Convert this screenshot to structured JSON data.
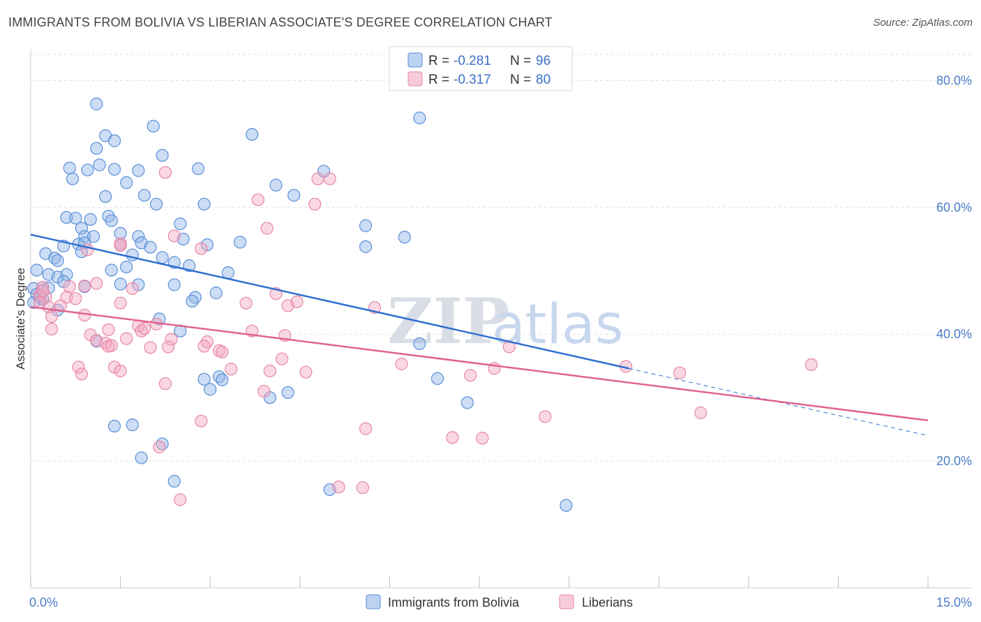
{
  "header": {
    "title": "IMMIGRANTS FROM BOLIVIA VS LIBERIAN ASSOCIATE'S DEGREE CORRELATION CHART",
    "source": "Source: ZipAtlas.com"
  },
  "watermark": {
    "zip": "ZIP",
    "atlas": "atlas"
  },
  "legend_top": {
    "rows": [
      {
        "r_label": "R = ",
        "r_value": "-0.281",
        "n_label": "N = ",
        "n_value": "96",
        "color": "#8fb4e8"
      },
      {
        "r_label": "R = ",
        "r_value": "-0.317",
        "n_label": "N = ",
        "n_value": "80",
        "color": "#f4a9c2"
      }
    ]
  },
  "legend_bottom": {
    "items": [
      {
        "label": "Immigrants from Bolivia",
        "color": "#8fb4e8"
      },
      {
        "label": "Liberians",
        "color": "#f4a9c2"
      }
    ]
  },
  "chart_data": {
    "type": "scatter",
    "title": "IMMIGRANTS FROM BOLIVIA VS LIBERIAN ASSOCIATE'S DEGREE CORRELATION CHART",
    "ylabel": "Associate's Degree",
    "xlabel": "",
    "xlim": [
      0,
      15
    ],
    "ylim": [
      0,
      85
    ],
    "x_tick_labels": [
      "0.0%",
      "15.0%"
    ],
    "y_ticks": [
      20,
      40,
      60,
      80
    ],
    "y_tick_labels": [
      "20.0%",
      "40.0%",
      "60.0%",
      "80.0%"
    ],
    "grid": true,
    "legend_position": "top-center",
    "series": [
      {
        "name": "Immigrants from Bolivia",
        "color": "#8fb4e8",
        "stroke": "#5b8fd6",
        "trend": {
          "x": [
            0,
            10
          ],
          "y": [
            55.7,
            34.6
          ],
          "dashed_to": [
            15,
            24.0
          ],
          "color": "#2f6fd0"
        },
        "points": [
          [
            1.1,
            76.3
          ],
          [
            1.25,
            71.3
          ],
          [
            2.05,
            72.8
          ],
          [
            3.7,
            71.5
          ],
          [
            6.5,
            74.1
          ],
          [
            1.1,
            69.3
          ],
          [
            1.4,
            70.5
          ],
          [
            2.2,
            68.2
          ],
          [
            0.65,
            66.2
          ],
          [
            0.95,
            65.9
          ],
          [
            1.15,
            66.7
          ],
          [
            1.4,
            66.0
          ],
          [
            1.8,
            65.8
          ],
          [
            2.8,
            66.1
          ],
          [
            4.9,
            65.7
          ],
          [
            0.7,
            64.5
          ],
          [
            1.6,
            63.9
          ],
          [
            4.1,
            63.5
          ],
          [
            1.25,
            61.7
          ],
          [
            1.9,
            61.9
          ],
          [
            2.1,
            60.5
          ],
          [
            4.4,
            61.9
          ],
          [
            2.9,
            60.5
          ],
          [
            0.6,
            58.4
          ],
          [
            0.75,
            58.3
          ],
          [
            1.0,
            58.1
          ],
          [
            1.3,
            58.6
          ],
          [
            1.35,
            57.9
          ],
          [
            2.5,
            57.4
          ],
          [
            5.6,
            57.1
          ],
          [
            0.85,
            56.7
          ],
          [
            1.5,
            55.9
          ],
          [
            0.9,
            55.4
          ],
          [
            1.05,
            55.4
          ],
          [
            1.8,
            55.4
          ],
          [
            2.55,
            55.0
          ],
          [
            6.25,
            55.3
          ],
          [
            0.55,
            53.9
          ],
          [
            0.8,
            54.2
          ],
          [
            0.9,
            54.4
          ],
          [
            1.5,
            54.0
          ],
          [
            1.85,
            54.4
          ],
          [
            2.0,
            53.7
          ],
          [
            2.95,
            54.1
          ],
          [
            3.5,
            54.5
          ],
          [
            5.6,
            53.8
          ],
          [
            0.25,
            52.7
          ],
          [
            0.4,
            52.0
          ],
          [
            0.45,
            51.6
          ],
          [
            0.85,
            53.0
          ],
          [
            1.7,
            52.5
          ],
          [
            2.2,
            52.1
          ],
          [
            2.65,
            50.8
          ],
          [
            2.4,
            51.3
          ],
          [
            0.1,
            50.1
          ],
          [
            1.35,
            50.1
          ],
          [
            1.6,
            50.6
          ],
          [
            0.3,
            49.4
          ],
          [
            0.45,
            49.0
          ],
          [
            0.6,
            49.4
          ],
          [
            3.3,
            49.7
          ],
          [
            0.55,
            48.3
          ],
          [
            1.5,
            47.9
          ],
          [
            2.4,
            47.8
          ],
          [
            0.05,
            47.2
          ],
          [
            0.2,
            47.4
          ],
          [
            0.3,
            47.3
          ],
          [
            0.1,
            46.3
          ],
          [
            0.15,
            45.8
          ],
          [
            0.2,
            45.5
          ],
          [
            3.1,
            46.5
          ],
          [
            2.75,
            45.8
          ],
          [
            2.7,
            45.2
          ],
          [
            0.05,
            45.0
          ],
          [
            0.45,
            43.8
          ],
          [
            2.15,
            42.4
          ],
          [
            2.5,
            40.5
          ],
          [
            6.5,
            38.5
          ],
          [
            2.9,
            32.9
          ],
          [
            3.15,
            33.3
          ],
          [
            3.2,
            32.8
          ],
          [
            3.0,
            31.3
          ],
          [
            4.0,
            30.0
          ],
          [
            4.3,
            30.8
          ],
          [
            6.8,
            33.0
          ],
          [
            7.3,
            29.2
          ],
          [
            1.4,
            25.5
          ],
          [
            1.7,
            25.7
          ],
          [
            2.2,
            22.7
          ],
          [
            1.85,
            20.5
          ],
          [
            2.4,
            16.8
          ],
          [
            5.0,
            15.5
          ],
          [
            8.95,
            13.0
          ],
          [
            1.8,
            47.8
          ],
          [
            0.9,
            47.5
          ],
          [
            1.1,
            38.9
          ]
        ]
      },
      {
        "name": "Liberians",
        "color": "#f4a9c2",
        "stroke": "#e687a8",
        "trend": {
          "x": [
            0,
            15
          ],
          "y": [
            44.3,
            26.4
          ],
          "color": "#e0628f"
        },
        "points": [
          [
            2.25,
            65.5
          ],
          [
            5.0,
            64.5
          ],
          [
            3.8,
            61.2
          ],
          [
            4.75,
            60.5
          ],
          [
            3.95,
            56.7
          ],
          [
            2.4,
            55.5
          ],
          [
            1.5,
            54.3
          ],
          [
            2.85,
            53.5
          ],
          [
            0.95,
            53.3
          ],
          [
            0.2,
            47.4
          ],
          [
            0.65,
            47.5
          ],
          [
            0.9,
            47.6
          ],
          [
            1.1,
            48.0
          ],
          [
            1.7,
            47.2
          ],
          [
            0.15,
            46.2
          ],
          [
            0.25,
            45.9
          ],
          [
            0.6,
            45.8
          ],
          [
            0.75,
            45.6
          ],
          [
            4.1,
            46.4
          ],
          [
            0.3,
            44.3
          ],
          [
            0.5,
            44.5
          ],
          [
            1.5,
            44.9
          ],
          [
            3.6,
            44.9
          ],
          [
            4.45,
            45.1
          ],
          [
            4.3,
            44.5
          ],
          [
            5.75,
            44.2
          ],
          [
            0.35,
            42.8
          ],
          [
            0.9,
            43.0
          ],
          [
            1.8,
            41.3
          ],
          [
            1.85,
            40.5
          ],
          [
            0.35,
            40.8
          ],
          [
            1.0,
            39.9
          ],
          [
            1.3,
            40.7
          ],
          [
            2.35,
            39.2
          ],
          [
            3.7,
            40.5
          ],
          [
            4.25,
            39.8
          ],
          [
            1.1,
            39.0
          ],
          [
            1.25,
            38.6
          ],
          [
            1.6,
            39.3
          ],
          [
            2.95,
            38.8
          ],
          [
            1.3,
            38.1
          ],
          [
            2.0,
            37.9
          ],
          [
            2.3,
            38.0
          ],
          [
            2.9,
            38.1
          ],
          [
            3.15,
            37.4
          ],
          [
            3.2,
            37.2
          ],
          [
            4.2,
            36.1
          ],
          [
            0.8,
            34.8
          ],
          [
            1.4,
            34.8
          ],
          [
            1.5,
            34.2
          ],
          [
            0.85,
            33.7
          ],
          [
            3.35,
            34.5
          ],
          [
            4.0,
            34.2
          ],
          [
            4.6,
            34.0
          ],
          [
            6.2,
            35.3
          ],
          [
            7.75,
            34.6
          ],
          [
            7.35,
            33.5
          ],
          [
            8.0,
            38.0
          ],
          [
            9.95,
            34.9
          ],
          [
            10.85,
            33.9
          ],
          [
            13.05,
            35.2
          ],
          [
            2.25,
            32.2
          ],
          [
            3.9,
            31.0
          ],
          [
            11.2,
            27.6
          ],
          [
            8.6,
            27.0
          ],
          [
            2.85,
            26.3
          ],
          [
            5.6,
            25.1
          ],
          [
            7.05,
            23.7
          ],
          [
            7.55,
            23.6
          ],
          [
            2.15,
            22.2
          ],
          [
            5.15,
            15.9
          ],
          [
            5.55,
            15.8
          ],
          [
            2.5,
            13.9
          ],
          [
            1.5,
            54.0
          ],
          [
            4.8,
            64.5
          ],
          [
            0.2,
            46.8
          ],
          [
            1.9,
            40.9
          ],
          [
            1.35,
            38.2
          ],
          [
            2.1,
            41.6
          ],
          [
            0.15,
            45.0
          ]
        ]
      }
    ]
  }
}
